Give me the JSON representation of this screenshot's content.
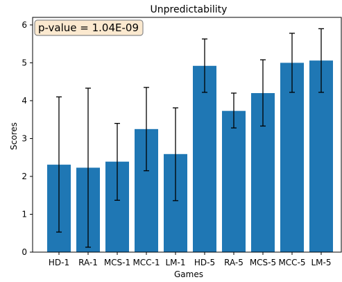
{
  "chart_data": {
    "type": "bar",
    "title": "Unpredictability",
    "xlabel": "Games",
    "ylabel": "Scores",
    "ylim": [
      0,
      6.2
    ],
    "yticks": [
      0,
      1,
      2,
      3,
      4,
      5,
      6
    ],
    "yticklabels": [
      "0",
      "1",
      "2",
      "3",
      "4",
      "5",
      "6"
    ],
    "categories": [
      "HD-1",
      "RA-1",
      "MCS-1",
      "MCC-1",
      "LM-1",
      "HD-5",
      "RA-5",
      "MCS-5",
      "MCC-5",
      "LM-5"
    ],
    "values": [
      2.31,
      2.23,
      2.39,
      3.25,
      2.59,
      4.92,
      3.73,
      4.2,
      5.0,
      5.06
    ],
    "error_low": [
      0.53,
      0.13,
      1.37,
      2.15,
      1.36,
      4.22,
      3.28,
      3.33,
      4.22,
      4.22
    ],
    "error_high": [
      4.1,
      4.33,
      3.4,
      4.35,
      3.81,
      5.63,
      4.2,
      5.08,
      5.78,
      5.9
    ],
    "bar_color": "#1f77b4",
    "error_color": "#000000",
    "grid": false,
    "annotation": {
      "text": "p-value = 1.04E-09",
      "placement": "top-left",
      "background": "#fbe9cf",
      "border": "#8a8a8a"
    }
  }
}
